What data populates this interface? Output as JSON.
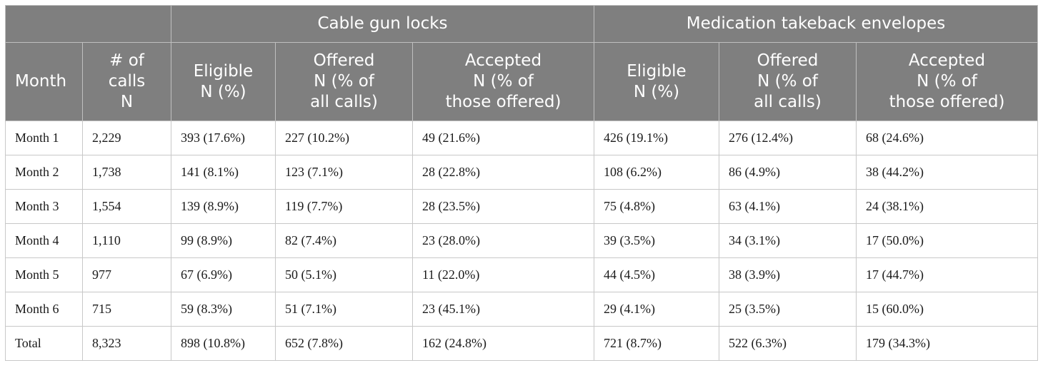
{
  "table": {
    "group_headers": [
      "",
      "Cable gun locks",
      "Medication takeback envelopes"
    ],
    "column_headers": [
      [
        "Month"
      ],
      [
        "# of",
        "calls",
        "N"
      ],
      [
        "Eligible",
        "N (%)"
      ],
      [
        "Offered",
        "N (% of",
        "all calls)"
      ],
      [
        "Accepted",
        "N (% of",
        "those offered)"
      ],
      [
        "Eligible",
        "N (%)"
      ],
      [
        "Offered",
        "N (% of",
        "all calls)"
      ],
      [
        "Accepted",
        "N (% of",
        "those offered)"
      ]
    ],
    "rows": [
      [
        "Month 1",
        "2,229",
        "393 (17.6%)",
        "227 (10.2%)",
        "49 (21.6%)",
        "426 (19.1%)",
        "276 (12.4%)",
        "68 (24.6%)"
      ],
      [
        "Month 2",
        "1,738",
        "141 (8.1%)",
        "123 (7.1%)",
        "28 (22.8%)",
        "108 (6.2%)",
        "86 (4.9%)",
        "38 (44.2%)"
      ],
      [
        "Month 3",
        "1,554",
        "139 (8.9%)",
        "119 (7.7%)",
        "28 (23.5%)",
        "75 (4.8%)",
        "63 (4.1%)",
        "24 (38.1%)"
      ],
      [
        "Month 4",
        "1,110",
        "99 (8.9%)",
        "82 (7.4%)",
        "23 (28.0%)",
        "39 (3.5%)",
        "34 (3.1%)",
        "17 (50.0%)"
      ],
      [
        "Month 5",
        "977",
        "67 (6.9%)",
        "50 (5.1%)",
        "11 (22.0%)",
        "44 (4.5%)",
        "38 (3.9%)",
        "17 (44.7%)"
      ],
      [
        "Month 6",
        "715",
        "59 (8.3%)",
        "51 (7.1%)",
        "23 (45.1%)",
        "29 (4.1%)",
        "25 (3.5%)",
        "15 (60.0%)"
      ],
      [
        "Total",
        "8,323",
        "898 (10.8%)",
        "652 (7.8%)",
        "162 (24.8%)",
        "721 (8.7%)",
        "522 (6.3%)",
        "179 (34.3%)"
      ]
    ]
  }
}
